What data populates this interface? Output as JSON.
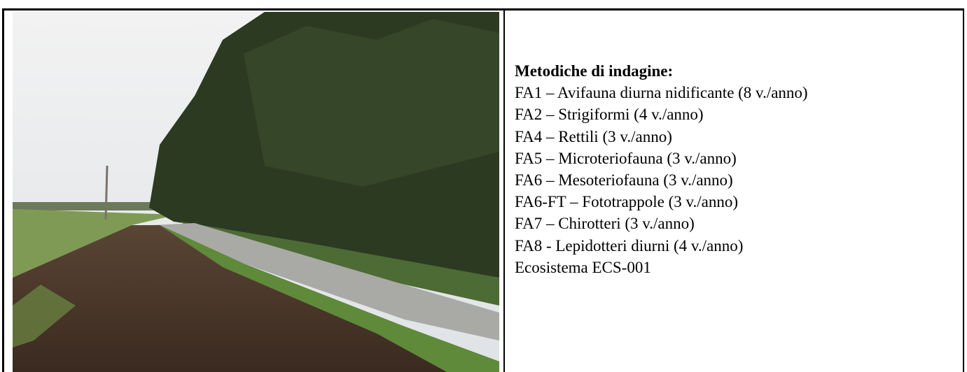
{
  "heading": "Metodiche di indagine:",
  "items": [
    "FA1 – Avifauna diurna nidificante (8 v./anno)",
    "FA2 – Strigiformi (4 v./anno)",
    "FA4 – Rettili (3 v./anno)",
    "FA5 – Microteriofauna (3 v./anno)",
    "FA6 – Mesoteriofauna (3 v./anno)",
    "FA6-FT – Fototrappole (3 v./anno)",
    "FA7 – Chirotteri (3 v./anno)",
    "FA8 - Lepidotteri diurni (4 v./anno)",
    "Ecosistema ECS-001"
  ]
}
